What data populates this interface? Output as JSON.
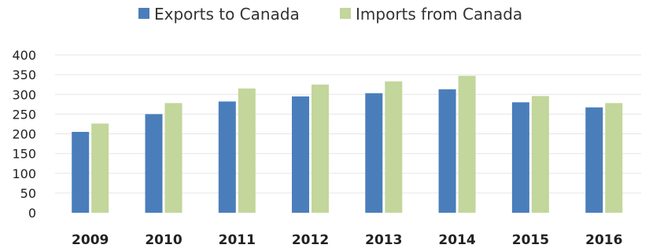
{
  "chart_data": {
    "type": "bar",
    "title": "",
    "xlabel": "",
    "ylabel": "",
    "categories": [
      "2009",
      "2010",
      "2011",
      "2012",
      "2013",
      "2014",
      "2015",
      "2016"
    ],
    "series": [
      {
        "name": "Exports to Canada",
        "color": "#4a7ebb",
        "values": [
          205,
          250,
          282,
          295,
          303,
          313,
          280,
          267
        ]
      },
      {
        "name": "Imports from Canada",
        "color": "#c3d69b",
        "values": [
          226,
          278,
          315,
          325,
          333,
          347,
          296,
          278
        ]
      }
    ],
    "yticks": [
      "0",
      "50",
      "100",
      "150",
      "200",
      "250",
      "300",
      "350",
      "400"
    ],
    "ylim": [
      0,
      400
    ],
    "grid": true,
    "legend_position": "top-center"
  }
}
